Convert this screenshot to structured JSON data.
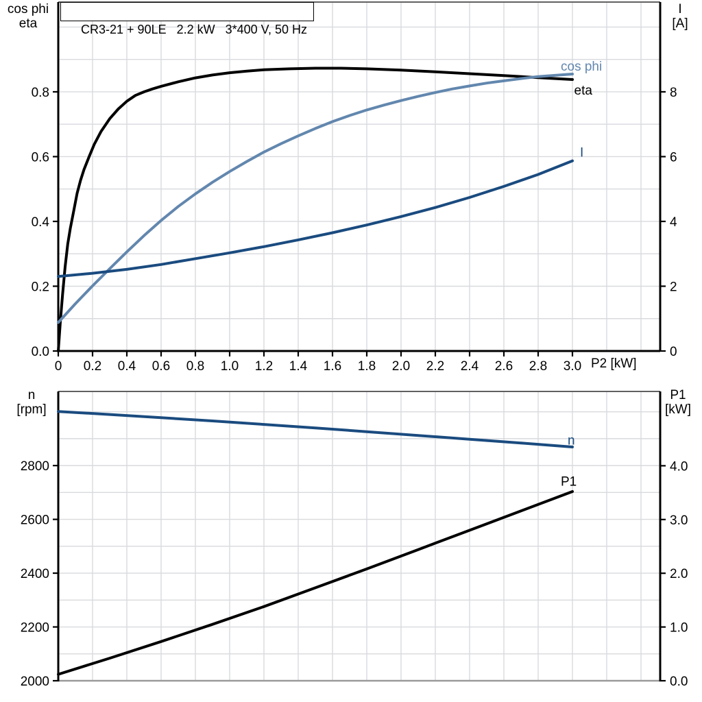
{
  "colors": {
    "black": "#000000",
    "steel_blue": "#6287ae",
    "navy": "#1a4b7f",
    "grid": "#d8dade",
    "frame_gray": "#9a9a9a"
  },
  "chart_data": [
    {
      "name": "motor-data",
      "type": "line",
      "title": "CR3-21 + 90LE   2.2 kW   3*400 V, 50 Hz",
      "x_axis": {
        "label": "P2 [kW]",
        "min": 0,
        "max": 3.512,
        "ticks": [
          0,
          0.2,
          0.4,
          0.6,
          0.8,
          1.0,
          1.2,
          1.4,
          1.6,
          1.8,
          2.0,
          2.2,
          2.4,
          2.6,
          2.8,
          3.0
        ],
        "tick_labels": [
          "0",
          "0.2",
          "0.4",
          "0.6",
          "0.8",
          "1.0",
          "1.2",
          "1.4",
          "1.6",
          "1.8",
          "2.0",
          "2.2",
          "2.4",
          "2.6",
          "2.8",
          "3.0"
        ],
        "grid": [
          0.2,
          0.4,
          0.6,
          0.8,
          1.0,
          1.2,
          1.4,
          1.6,
          1.8,
          2.0,
          2.2,
          2.4,
          2.6,
          2.8,
          3.0,
          3.2,
          3.4
        ]
      },
      "y_left": {
        "label_lines": [
          "cos phi",
          "eta"
        ],
        "min": 0,
        "max": 1.075,
        "ticks": [
          0,
          0.2,
          0.4,
          0.6,
          0.8
        ],
        "tick_labels": [
          "0.0",
          "0.2",
          "0.4",
          "0.6",
          "0.8"
        ],
        "grid": [
          0.1,
          0.2,
          0.3,
          0.4,
          0.5,
          0.6,
          0.7,
          0.8,
          0.9,
          1.0
        ]
      },
      "y_right": {
        "label_lines": [
          "I",
          "[A]"
        ],
        "min": 0,
        "max": 10.75,
        "ticks": [
          0,
          2,
          4,
          6,
          8
        ],
        "tick_labels": [
          "0",
          "2",
          "4",
          "6",
          "8"
        ]
      },
      "series": [
        {
          "name": "eta",
          "label": "eta",
          "axis": "left",
          "color": "#000000",
          "label_anchor": [
            3.01,
            0.791
          ],
          "points": [
            [
              0,
              0
            ],
            [
              0.012,
              0.09
            ],
            [
              0.025,
              0.175
            ],
            [
              0.04,
              0.26
            ],
            [
              0.055,
              0.33
            ],
            [
              0.07,
              0.378
            ],
            [
              0.09,
              0.432
            ],
            [
              0.11,
              0.487
            ],
            [
              0.13,
              0.527
            ],
            [
              0.15,
              0.56
            ],
            [
              0.18,
              0.6
            ],
            [
              0.21,
              0.638
            ],
            [
              0.25,
              0.678
            ],
            [
              0.3,
              0.717
            ],
            [
              0.35,
              0.747
            ],
            [
              0.4,
              0.771
            ],
            [
              0.45,
              0.789
            ],
            [
              0.5,
              0.8
            ],
            [
              0.55,
              0.809
            ],
            [
              0.6,
              0.817
            ],
            [
              0.7,
              0.831
            ],
            [
              0.8,
              0.843
            ],
            [
              0.9,
              0.852
            ],
            [
              1.0,
              0.859
            ],
            [
              1.1,
              0.864
            ],
            [
              1.2,
              0.868
            ],
            [
              1.35,
              0.871
            ],
            [
              1.5,
              0.873
            ],
            [
              1.65,
              0.873
            ],
            [
              1.8,
              0.871
            ],
            [
              2.0,
              0.867
            ],
            [
              2.2,
              0.862
            ],
            [
              2.4,
              0.856
            ],
            [
              2.6,
              0.85
            ],
            [
              2.8,
              0.844
            ],
            [
              3.0,
              0.838
            ]
          ]
        },
        {
          "name": "cos-phi",
          "label": "cos phi",
          "axis": "left",
          "color": "#6287ae",
          "label_anchor": [
            2.932,
            0.865
          ],
          "points": [
            [
              0,
              0.088
            ],
            [
              0.1,
              0.146
            ],
            [
              0.2,
              0.201
            ],
            [
              0.3,
              0.254
            ],
            [
              0.4,
              0.306
            ],
            [
              0.5,
              0.356
            ],
            [
              0.6,
              0.403
            ],
            [
              0.7,
              0.446
            ],
            [
              0.8,
              0.485
            ],
            [
              0.9,
              0.521
            ],
            [
              1.0,
              0.554
            ],
            [
              1.1,
              0.585
            ],
            [
              1.2,
              0.614
            ],
            [
              1.3,
              0.64
            ],
            [
              1.4,
              0.664
            ],
            [
              1.5,
              0.687
            ],
            [
              1.6,
              0.708
            ],
            [
              1.7,
              0.727
            ],
            [
              1.8,
              0.744
            ],
            [
              1.9,
              0.759
            ],
            [
              2.0,
              0.773
            ],
            [
              2.1,
              0.786
            ],
            [
              2.2,
              0.798
            ],
            [
              2.3,
              0.809
            ],
            [
              2.4,
              0.818
            ],
            [
              2.5,
              0.827
            ],
            [
              2.6,
              0.834
            ],
            [
              2.7,
              0.841
            ],
            [
              2.8,
              0.847
            ],
            [
              2.9,
              0.851
            ],
            [
              3.0,
              0.855
            ]
          ]
        },
        {
          "name": "current",
          "label": "I",
          "axis": "right",
          "color": "#1a4b7f",
          "label_anchor": [
            3.044,
            6.0
          ],
          "points": [
            [
              0,
              2.3
            ],
            [
              0.2,
              2.4
            ],
            [
              0.4,
              2.52
            ],
            [
              0.6,
              2.67
            ],
            [
              0.8,
              2.85
            ],
            [
              1.0,
              3.03
            ],
            [
              1.2,
              3.22
            ],
            [
              1.4,
              3.43
            ],
            [
              1.6,
              3.65
            ],
            [
              1.8,
              3.89
            ],
            [
              2.0,
              4.15
            ],
            [
              2.2,
              4.43
            ],
            [
              2.4,
              4.74
            ],
            [
              2.6,
              5.08
            ],
            [
              2.8,
              5.45
            ],
            [
              3.0,
              5.87
            ]
          ]
        }
      ]
    },
    {
      "name": "speed-power",
      "type": "line",
      "title": "",
      "x_axis": {
        "label": "",
        "min": 0,
        "max": 3.512,
        "ticks": [],
        "tick_labels": [],
        "grid": [
          0.2,
          0.4,
          0.6,
          0.8,
          1.0,
          1.2,
          1.4,
          1.6,
          1.8,
          2.0,
          2.2,
          2.4,
          2.6,
          2.8,
          3.0,
          3.2,
          3.4
        ]
      },
      "y_left": {
        "label_lines": [
          "n",
          "[rpm]"
        ],
        "min": 2000,
        "max": 3073,
        "ticks": [
          2000,
          2200,
          2400,
          2600,
          2800
        ],
        "tick_labels": [
          "2000",
          "2200",
          "2400",
          "2600",
          "2800"
        ],
        "grid": [
          2100,
          2200,
          2300,
          2400,
          2500,
          2600,
          2700,
          2800,
          2900,
          3000
        ]
      },
      "y_right": {
        "label_lines": [
          "P1",
          "[kW]"
        ],
        "min": 0,
        "max": 5.37,
        "ticks": [
          0,
          1,
          2,
          3,
          4
        ],
        "tick_labels": [
          "0.0",
          "1.0",
          "2.0",
          "3.0",
          "4.0"
        ]
      },
      "series": [
        {
          "name": "speed",
          "label": "n",
          "axis": "left",
          "color": "#1a4b7f",
          "label_anchor": [
            2.972,
            2878
          ],
          "points": [
            [
              0,
              3001
            ],
            [
              0.3,
              2990
            ],
            [
              0.6,
              2978
            ],
            [
              0.9,
              2966
            ],
            [
              1.2,
              2953
            ],
            [
              1.5,
              2940
            ],
            [
              1.8,
              2926
            ],
            [
              2.1,
              2912
            ],
            [
              2.4,
              2898
            ],
            [
              2.7,
              2884
            ],
            [
              3.0,
              2869
            ]
          ]
        },
        {
          "name": "input-power",
          "label": "P1",
          "axis": "right",
          "color": "#000000",
          "label_anchor": [
            2.932,
            3.63
          ],
          "points": [
            [
              0,
              0.12
            ],
            [
              0.3,
              0.42
            ],
            [
              0.6,
              0.73
            ],
            [
              0.9,
              1.05
            ],
            [
              1.2,
              1.38
            ],
            [
              1.5,
              1.73
            ],
            [
              1.8,
              2.08
            ],
            [
              2.1,
              2.44
            ],
            [
              2.4,
              2.8
            ],
            [
              2.7,
              3.16
            ],
            [
              3.0,
              3.52
            ]
          ]
        }
      ]
    }
  ]
}
